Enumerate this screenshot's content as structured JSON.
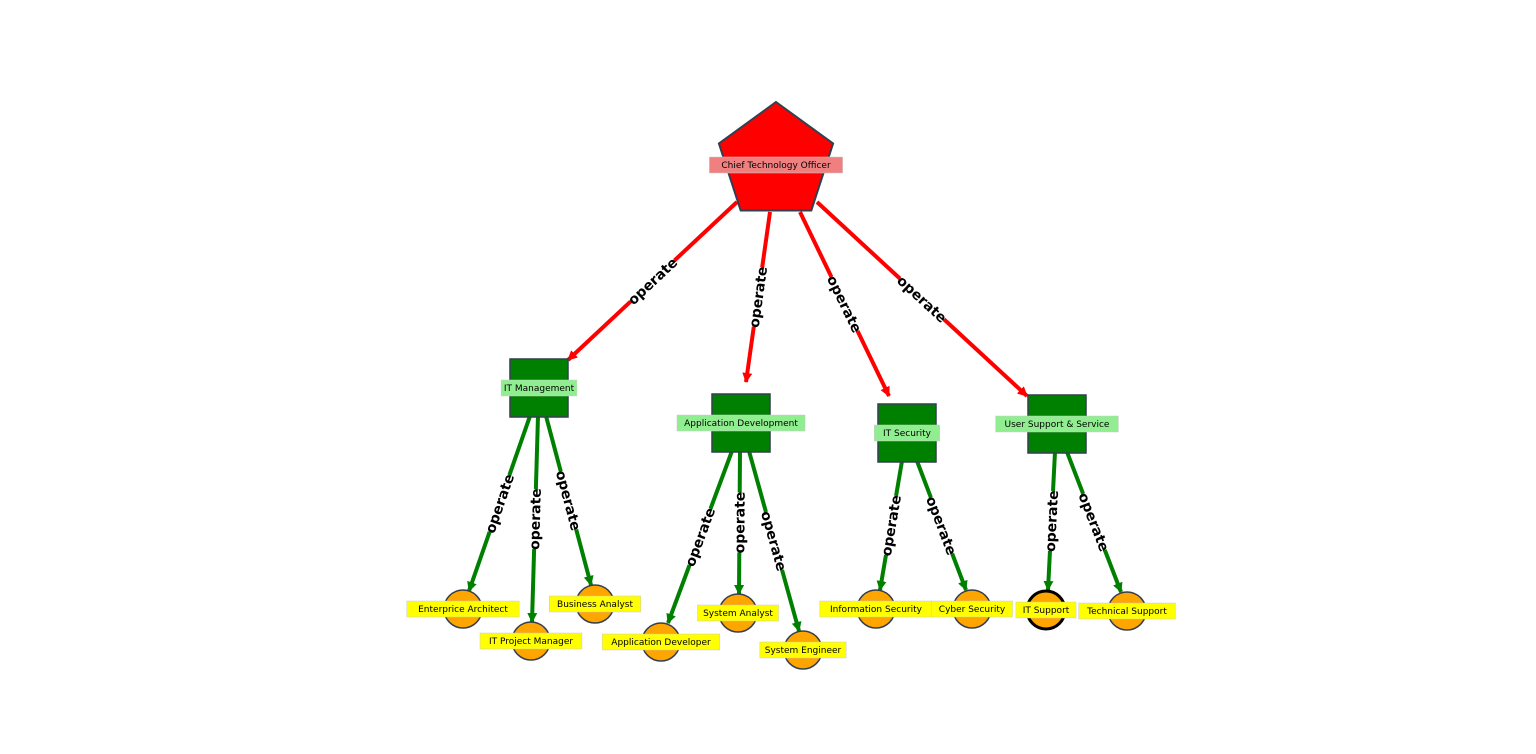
{
  "colors": {
    "root_fill": "#ff0000",
    "root_label_bg": "#f08080",
    "dept_fill": "#008000",
    "dept_label_bg": "#90ee90",
    "role_fill": "#ffa500",
    "role_label_bg": "#ffff00",
    "node_stroke": "#333f50",
    "top_edge": "#ff0000",
    "sub_edge": "#008000"
  },
  "nodes": [
    {
      "id": "cto",
      "label": "Chief Technology Officer",
      "shape": "pentagon",
      "level": "root"
    },
    {
      "id": "itm",
      "label": "IT Management",
      "shape": "square",
      "level": "department"
    },
    {
      "id": "appdev",
      "label": "Application Development",
      "shape": "square",
      "level": "department"
    },
    {
      "id": "itsec",
      "label": "IT Security",
      "shape": "square",
      "level": "department"
    },
    {
      "id": "uss",
      "label": "User Support & Service",
      "shape": "square",
      "level": "department"
    },
    {
      "id": "ea",
      "label": "Enterprice Architect",
      "shape": "circle",
      "level": "role"
    },
    {
      "id": "itpm",
      "label": "IT Project Manager",
      "shape": "circle",
      "level": "role"
    },
    {
      "id": "ba",
      "label": "Business Analyst",
      "shape": "circle",
      "level": "role"
    },
    {
      "id": "ad",
      "label": "Application Developer",
      "shape": "circle",
      "level": "role"
    },
    {
      "id": "sa",
      "label": "System Analyst",
      "shape": "circle",
      "level": "role"
    },
    {
      "id": "se",
      "label": "System Engineer",
      "shape": "circle",
      "level": "role"
    },
    {
      "id": "is",
      "label": "Information Security",
      "shape": "circle",
      "level": "role"
    },
    {
      "id": "cs",
      "label": "Cyber Security",
      "shape": "circle",
      "level": "role"
    },
    {
      "id": "its",
      "label": "IT Support",
      "shape": "circle",
      "level": "role",
      "highlighted": true
    },
    {
      "id": "ts",
      "label": "Technical Support",
      "shape": "circle",
      "level": "role"
    }
  ],
  "edges": [
    {
      "from": "cto",
      "to": "itm",
      "label": "operate"
    },
    {
      "from": "cto",
      "to": "appdev",
      "label": "operate"
    },
    {
      "from": "cto",
      "to": "itsec",
      "label": "operate"
    },
    {
      "from": "cto",
      "to": "uss",
      "label": "operate"
    },
    {
      "from": "itm",
      "to": "ea",
      "label": "operate"
    },
    {
      "from": "itm",
      "to": "itpm",
      "label": "operate"
    },
    {
      "from": "itm",
      "to": "ba",
      "label": "operate"
    },
    {
      "from": "appdev",
      "to": "ad",
      "label": "operate"
    },
    {
      "from": "appdev",
      "to": "sa",
      "label": "operate"
    },
    {
      "from": "appdev",
      "to": "se",
      "label": "operate"
    },
    {
      "from": "itsec",
      "to": "is",
      "label": "operate"
    },
    {
      "from": "itsec",
      "to": "cs",
      "label": "operate"
    },
    {
      "from": "uss",
      "to": "its",
      "label": "operate"
    },
    {
      "from": "uss",
      "to": "ts",
      "label": "operate"
    }
  ]
}
